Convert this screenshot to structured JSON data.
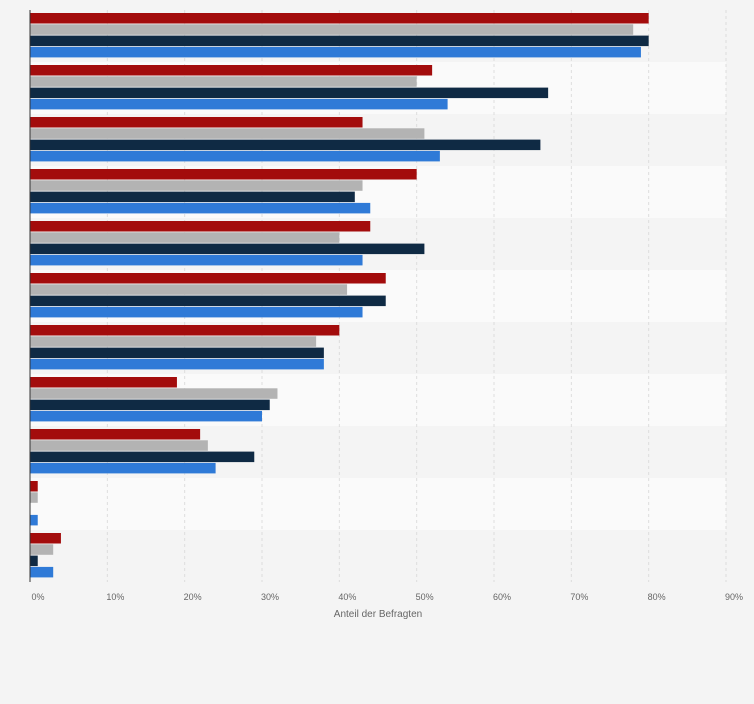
{
  "chart_data": {
    "type": "bar",
    "orientation": "horizontal",
    "xlabel": "Anteil der Befragten",
    "ylabel": "",
    "xlim": [
      0,
      90
    ],
    "xticks": [
      0,
      10,
      20,
      30,
      40,
      50,
      60,
      70,
      80,
      90
    ],
    "tick_suffix": "%",
    "grid": true,
    "legend": "none",
    "categories": [
      "",
      "",
      "",
      "",
      "",
      "",
      "",
      "",
      "",
      "",
      ""
    ],
    "series": [
      {
        "color": "#a30c0c",
        "values": [
          80,
          52,
          43,
          50,
          44,
          46,
          40,
          19,
          22,
          1,
          4
        ]
      },
      {
        "color": "#b3b3b3",
        "values": [
          78,
          50,
          51,
          43,
          40,
          41,
          37,
          32,
          23,
          1,
          3
        ]
      },
      {
        "color": "#0f2a44",
        "values": [
          80,
          67,
          66,
          42,
          51,
          46,
          38,
          31,
          29,
          0,
          1
        ]
      },
      {
        "color": "#2f7ad7",
        "values": [
          79,
          54,
          53,
          44,
          43,
          43,
          38,
          30,
          24,
          1,
          3
        ]
      }
    ]
  }
}
